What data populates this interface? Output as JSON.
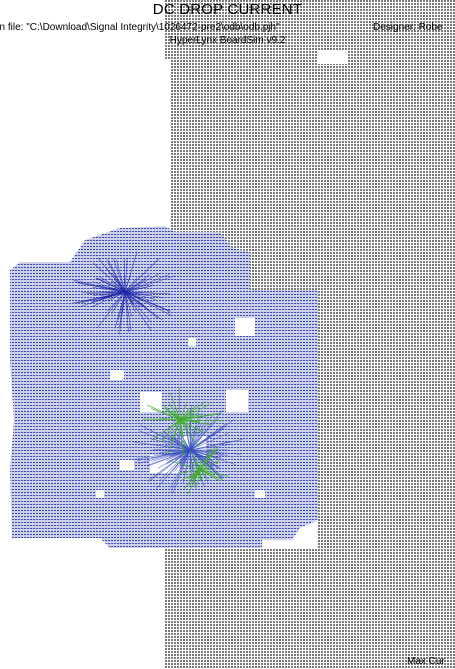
{
  "header": {
    "title": "DC DROP CURRENT",
    "design_file": "gn file: \"C:\\Download\\Signal Integrity\\1026472-pre2\\odb\\odb.pjh\"",
    "designer": "Designer: Robe",
    "tool": "HyperLynx BoardSim v9.2"
  },
  "footer": {
    "max_current": "Max Cur"
  },
  "colors": {
    "grid": "#6e6e6e",
    "current_low": "#1f2aa8",
    "current_mid": "#3b4fc2",
    "current_high": "#3fae2a",
    "background": "#ffffff"
  }
}
